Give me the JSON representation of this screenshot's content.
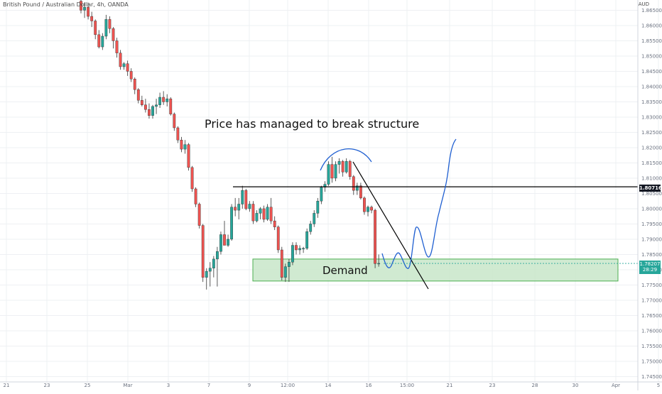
{
  "header": {
    "symbol_title": "British Pound / Australian Dollar, 4h, OANDA",
    "currency": "AUD"
  },
  "annotations": {
    "break_text": "Price has managed to break structure",
    "demand_text": "Demand"
  },
  "price_tags": {
    "level": "1.80716",
    "last_price": "1.78207",
    "countdown": "28:29"
  },
  "colors": {
    "up": "#26a69a",
    "down": "#ef5350",
    "drawing_blue": "#1f5fd1",
    "demand_fill": "#c8e6c9",
    "demand_border": "#4caf50",
    "grid": "#eef0f3",
    "axis_text": "#6b7280"
  },
  "chart_data": {
    "type": "candlestick",
    "timeframe": "4h",
    "ylim": [
      1.741,
      1.8665
    ],
    "yticks": [
      "1.86500",
      "1.86000",
      "1.85500",
      "1.85000",
      "1.84500",
      "1.84000",
      "1.83500",
      "1.83000",
      "1.82500",
      "1.82000",
      "1.81500",
      "1.81000",
      "1.80500",
      "1.80000",
      "1.79500",
      "1.79000",
      "1.78500",
      "1.78000",
      "1.77500",
      "1.77000",
      "1.76500",
      "1.76000",
      "1.75500",
      "1.75000",
      "1.74500"
    ],
    "xticks": [
      {
        "label": "21",
        "pos": 0
      },
      {
        "label": "23",
        "pos": 9.5
      },
      {
        "label": "25",
        "pos": 19
      },
      {
        "label": "Mar",
        "pos": 28.5
      },
      {
        "label": "3",
        "pos": 38
      },
      {
        "label": "7",
        "pos": 47.5
      },
      {
        "label": "9",
        "pos": 57
      },
      {
        "label": "12:00",
        "pos": 66
      },
      {
        "label": "14",
        "pos": 75.5
      },
      {
        "label": "16",
        "pos": 85
      },
      {
        "label": "15:00",
        "pos": 94
      },
      {
        "label": "21",
        "pos": 104
      },
      {
        "label": "23",
        "pos": 114
      },
      {
        "label": "28",
        "pos": 124
      },
      {
        "label": "30",
        "pos": 133.5
      },
      {
        "label": "Apr",
        "pos": 143
      },
      {
        "label": "5",
        "pos": 153
      }
    ],
    "candles": [
      [
        1.868,
        1.869,
        1.864,
        1.865
      ],
      [
        1.865,
        1.8675,
        1.8625,
        1.866
      ],
      [
        1.866,
        1.8675,
        1.862,
        1.863
      ],
      [
        1.863,
        1.8645,
        1.8595,
        1.8615
      ],
      [
        1.8615,
        1.862,
        1.8555,
        1.857
      ],
      [
        1.857,
        1.8585,
        1.8525,
        1.853
      ],
      [
        1.853,
        1.8575,
        1.852,
        1.8565
      ],
      [
        1.8565,
        1.8635,
        1.8555,
        1.862
      ],
      [
        1.862,
        1.863,
        1.8575,
        1.859
      ],
      [
        1.859,
        1.8595,
        1.8525,
        1.855
      ],
      [
        1.855,
        1.856,
        1.8495,
        1.851
      ],
      [
        1.851,
        1.852,
        1.8455,
        1.8465
      ],
      [
        1.8465,
        1.848,
        1.8455,
        1.8475
      ],
      [
        1.8475,
        1.8485,
        1.8435,
        1.845
      ],
      [
        1.845,
        1.846,
        1.8415,
        1.8425
      ],
      [
        1.8425,
        1.843,
        1.8375,
        1.839
      ],
      [
        1.839,
        1.8395,
        1.8345,
        1.8355
      ],
      [
        1.8355,
        1.837,
        1.8335,
        1.834
      ],
      [
        1.834,
        1.836,
        1.8315,
        1.8325
      ],
      [
        1.8325,
        1.8345,
        1.8295,
        1.8305
      ],
      [
        1.8305,
        1.834,
        1.8295,
        1.8335
      ],
      [
        1.8335,
        1.836,
        1.831,
        1.834
      ],
      [
        1.834,
        1.838,
        1.833,
        1.8365
      ],
      [
        1.8365,
        1.8385,
        1.834,
        1.835
      ],
      [
        1.835,
        1.8375,
        1.8335,
        1.836
      ],
      [
        1.836,
        1.8365,
        1.8305,
        1.831
      ],
      [
        1.831,
        1.8315,
        1.8255,
        1.8265
      ],
      [
        1.8265,
        1.827,
        1.8215,
        1.8225
      ],
      [
        1.8225,
        1.8235,
        1.8185,
        1.8195
      ],
      [
        1.8195,
        1.8225,
        1.818,
        1.821
      ],
      [
        1.821,
        1.8215,
        1.8125,
        1.8135
      ],
      [
        1.8135,
        1.814,
        1.8055,
        1.8065
      ],
      [
        1.8065,
        1.807,
        1.8005,
        1.8015
      ],
      [
        1.8015,
        1.802,
        1.7935,
        1.7945
      ],
      [
        1.7945,
        1.795,
        1.776,
        1.7775
      ],
      [
        1.7775,
        1.7805,
        1.7735,
        1.7795
      ],
      [
        1.7795,
        1.7825,
        1.7745,
        1.7805
      ],
      [
        1.7805,
        1.7845,
        1.7775,
        1.7835
      ],
      [
        1.7835,
        1.7875,
        1.7745,
        1.786
      ],
      [
        1.786,
        1.7925,
        1.785,
        1.7915
      ],
      [
        1.7915,
        1.796,
        1.789,
        1.788
      ],
      [
        1.788,
        1.7915,
        1.7875,
        1.79
      ],
      [
        1.79,
        1.8015,
        1.7895,
        1.8005
      ],
      [
        1.8005,
        1.8035,
        1.7975,
        1.7995
      ],
      [
        1.7995,
        1.8035,
        1.7965,
        1.8015
      ],
      [
        1.8015,
        1.8075,
        1.8,
        1.806
      ],
      [
        1.806,
        1.8065,
        1.7995,
        1.8
      ],
      [
        1.8,
        1.8025,
        1.799,
        1.8015
      ],
      [
        1.8015,
        1.8025,
        1.795,
        1.796
      ],
      [
        1.796,
        1.7995,
        1.7955,
        1.7985
      ],
      [
        1.7985,
        1.8005,
        1.7965,
        1.8
      ],
      [
        1.8,
        1.801,
        1.7955,
        1.7965
      ],
      [
        1.7965,
        1.8015,
        1.796,
        1.8005
      ],
      [
        1.8005,
        1.8035,
        1.795,
        1.796
      ],
      [
        1.796,
        1.7975,
        1.793,
        1.794
      ],
      [
        1.794,
        1.7945,
        1.7855,
        1.7865
      ],
      [
        1.7865,
        1.7875,
        1.7765,
        1.7775
      ],
      [
        1.7775,
        1.782,
        1.776,
        1.781
      ],
      [
        1.781,
        1.7835,
        1.776,
        1.7825
      ],
      [
        1.7825,
        1.789,
        1.7815,
        1.788
      ],
      [
        1.788,
        1.789,
        1.785,
        1.7865
      ],
      [
        1.7865,
        1.788,
        1.785,
        1.787
      ],
      [
        1.787,
        1.7875,
        1.7855,
        1.787
      ],
      [
        1.787,
        1.7935,
        1.7865,
        1.7925
      ],
      [
        1.7925,
        1.796,
        1.7915,
        1.795
      ],
      [
        1.795,
        1.7995,
        1.794,
        1.7985
      ],
      [
        1.7985,
        1.8035,
        1.797,
        1.8025
      ],
      [
        1.8025,
        1.8075,
        1.8015,
        1.807
      ],
      [
        1.807,
        1.809,
        1.8055,
        1.808
      ],
      [
        1.808,
        1.8155,
        1.8075,
        1.8145
      ],
      [
        1.8145,
        1.817,
        1.8085,
        1.81
      ],
      [
        1.81,
        1.8155,
        1.809,
        1.8145
      ],
      [
        1.8145,
        1.8165,
        1.8115,
        1.8155
      ],
      [
        1.8155,
        1.816,
        1.8105,
        1.812
      ],
      [
        1.812,
        1.8165,
        1.8115,
        1.8155
      ],
      [
        1.8155,
        1.816,
        1.8095,
        1.8105
      ],
      [
        1.8105,
        1.811,
        1.8045,
        1.806
      ],
      [
        1.806,
        1.8085,
        1.8045,
        1.8075
      ],
      [
        1.8075,
        1.8085,
        1.803,
        1.8035
      ],
      [
        1.8035,
        1.804,
        1.798,
        1.799
      ],
      [
        1.799,
        1.801,
        1.7975,
        1.8005
      ],
      [
        1.8005,
        1.801,
        1.7985,
        1.7995
      ],
      [
        1.7995,
        1.8,
        1.7805,
        1.782
      ],
      [
        1.782,
        1.785,
        1.781,
        1.7821
      ]
    ],
    "horizontal_level": 1.80716,
    "demand_zone": {
      "low": 1.7763,
      "high": 1.7835,
      "label": "Demand"
    }
  }
}
